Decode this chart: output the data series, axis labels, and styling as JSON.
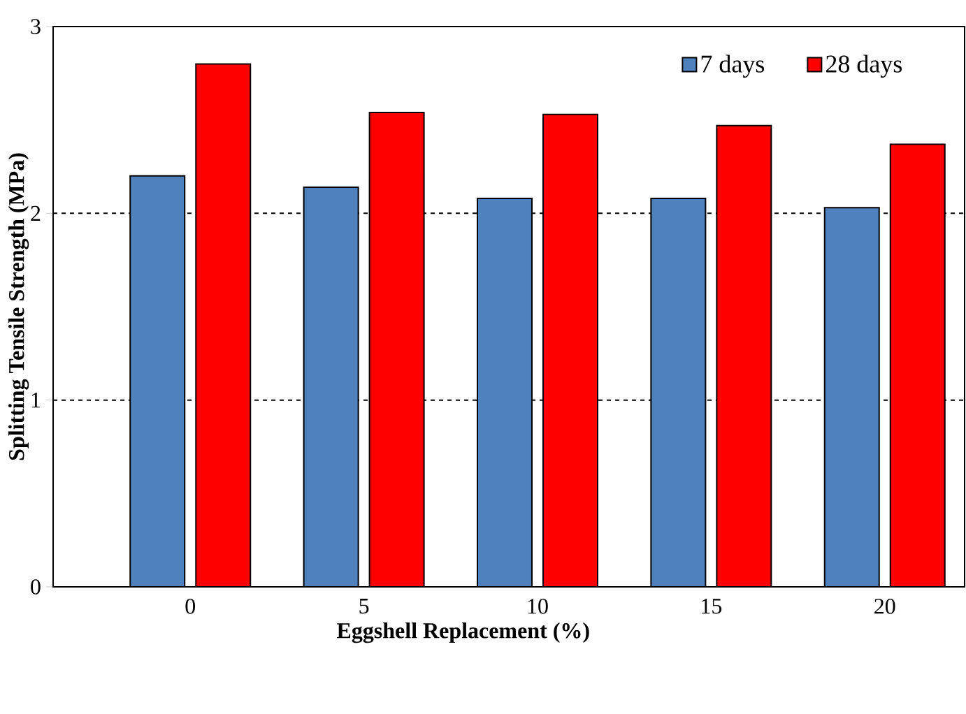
{
  "chart_data": {
    "type": "bar",
    "xlabel": "Eggshell Replacement (%)",
    "ylabel": "Splitting Tensile Strength (MPa)",
    "categories": [
      "0",
      "5",
      "10",
      "15",
      "20"
    ],
    "series": [
      {
        "name": "7 days",
        "color": "#4f81bd",
        "values": [
          2.2,
          2.14,
          2.08,
          2.08,
          2.03
        ]
      },
      {
        "name": "28 days",
        "color": "#ff0000",
        "values": [
          2.8,
          2.54,
          2.53,
          2.47,
          2.37
        ]
      }
    ],
    "ylim": [
      0,
      3
    ],
    "yticks": [
      0,
      1,
      2,
      3
    ],
    "grid": "y",
    "legend": "top right"
  }
}
